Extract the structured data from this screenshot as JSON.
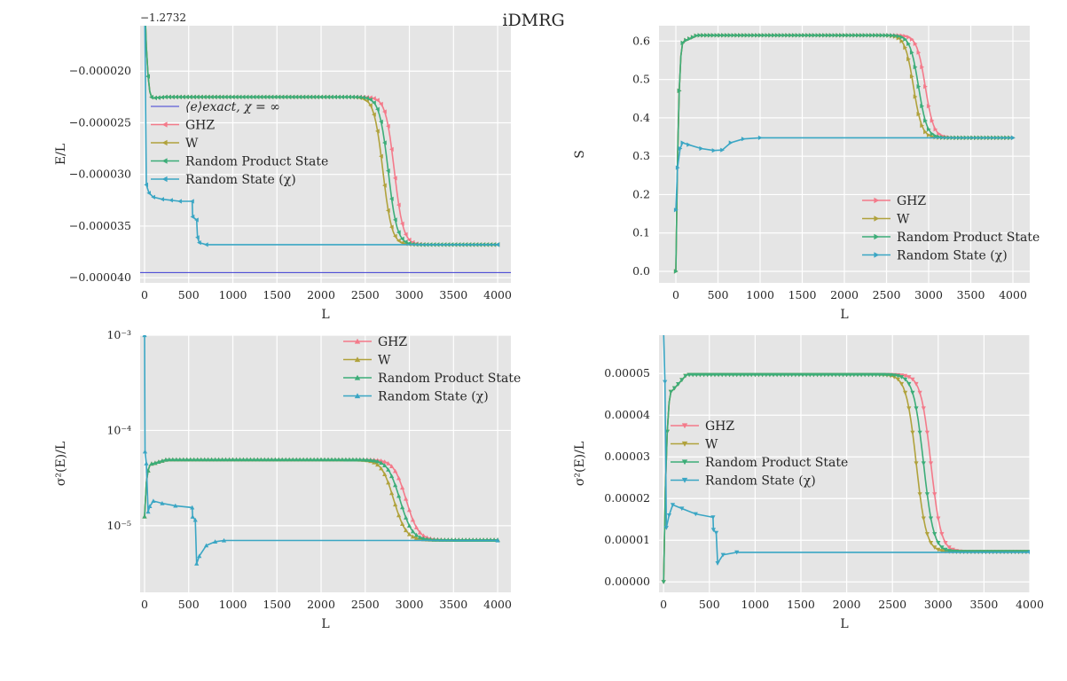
{
  "figure": {
    "suptitle": "iDMRG"
  },
  "chart_data": [
    {
      "id": "energy",
      "type": "line",
      "xlabel": "L",
      "ylabel": "E/L",
      "y_offset_label": "−1.2732",
      "xlim": [
        -50,
        4150
      ],
      "ylim": [
        -4.05e-05,
        -1.56e-05
      ],
      "x_ticks": [
        0,
        500,
        1000,
        1500,
        2000,
        2500,
        3000,
        3500,
        4000
      ],
      "y_ticks": [
        -4e-05,
        -3.5e-05,
        -3e-05,
        -2.5e-05,
        -2e-05
      ],
      "y_tick_labels": [
        "−0.000040",
        "−0.000035",
        "−0.000030",
        "−0.000025",
        "−0.000020"
      ],
      "grid": true,
      "marker": "tri-left",
      "legend_position": "center-left",
      "reference_line": {
        "label": "⟨e⟩exact, χ = ∞",
        "y": -3.95e-05,
        "color": "#3b3bd4"
      },
      "series": [
        {
          "name": "GHZ",
          "color": "#f47a8a",
          "shape": "logistic",
          "transition_x": 2830,
          "width": 50,
          "start": -1.29e-05,
          "early": -2.26e-05,
          "plateau": -2.25e-05,
          "final": -3.68e-05
        },
        {
          "name": "W",
          "color": "#b0a23c",
          "shape": "logistic",
          "transition_x": 2700,
          "width": 50,
          "start": -1.29e-05,
          "early": -2.26e-05,
          "plateau": -2.25e-05,
          "final": -3.68e-05
        },
        {
          "name": "Random Product State",
          "color": "#3cad78",
          "shape": "logistic",
          "transition_x": 2760,
          "width": 50,
          "start": -1.29e-05,
          "early": -2.26e-05,
          "plateau": -2.25e-05,
          "final": -3.68e-05
        },
        {
          "name": "Random State (χ)",
          "color": "#3aa6c4",
          "shape": "step",
          "points": [
            [
              0,
              -1.26e-05
            ],
            [
              20,
              -3.1e-05
            ],
            [
              50,
              -3.18e-05
            ],
            [
              100,
              -3.22e-05
            ],
            [
              200,
              -3.24e-05
            ],
            [
              300,
              -3.25e-05
            ],
            [
              400,
              -3.26e-05
            ],
            [
              540,
              -3.26e-05
            ],
            [
              545,
              -3.41e-05
            ],
            [
              590,
              -3.44e-05
            ],
            [
              600,
              -3.61e-05
            ],
            [
              620,
              -3.66e-05
            ],
            [
              700,
              -3.68e-05
            ],
            [
              4000,
              -3.68e-05
            ]
          ]
        }
      ]
    },
    {
      "id": "entropy",
      "type": "line",
      "xlabel": "L",
      "ylabel": "S",
      "xlim": [
        -200,
        4200
      ],
      "ylim": [
        -0.03,
        0.64
      ],
      "x_ticks": [
        0,
        500,
        1000,
        1500,
        2000,
        2500,
        3000,
        3500,
        4000
      ],
      "y_ticks": [
        0.0,
        0.1,
        0.2,
        0.3,
        0.4,
        0.5,
        0.6
      ],
      "y_tick_labels": [
        "0.0",
        "0.1",
        "0.2",
        "0.3",
        "0.4",
        "0.5",
        "0.6"
      ],
      "grid": true,
      "marker": "tri-right",
      "legend_position": "lower-right",
      "series": [
        {
          "name": "GHZ",
          "color": "#f47a8a",
          "shape": "logistic",
          "transition_x": 2960,
          "width": 50,
          "start": 0.0,
          "early": 0.6,
          "plateau": 0.615,
          "final": 0.348
        },
        {
          "name": "W",
          "color": "#b0a23c",
          "shape": "logistic",
          "transition_x": 2820,
          "width": 50,
          "start": 0.0,
          "early": 0.6,
          "plateau": 0.615,
          "final": 0.348
        },
        {
          "name": "Random Product State",
          "color": "#3cad78",
          "shape": "logistic",
          "transition_x": 2880,
          "width": 50,
          "start": 0.0,
          "early": 0.6,
          "plateau": 0.615,
          "final": 0.348
        },
        {
          "name": "Random State (χ)",
          "color": "#3aa6c4",
          "shape": "step",
          "points": [
            [
              0,
              0.16
            ],
            [
              20,
              0.27
            ],
            [
              50,
              0.32
            ],
            [
              80,
              0.335
            ],
            [
              150,
              0.33
            ],
            [
              300,
              0.32
            ],
            [
              450,
              0.315
            ],
            [
              550,
              0.316
            ],
            [
              650,
              0.335
            ],
            [
              800,
              0.345
            ],
            [
              1000,
              0.348
            ],
            [
              4000,
              0.348
            ]
          ]
        }
      ]
    },
    {
      "id": "variance_log",
      "type": "line",
      "xlabel": "L",
      "ylabel": "σ²(E)/L",
      "y_scale": "log",
      "xlim": [
        -50,
        4150
      ],
      "ylim": [
        2e-06,
        0.001
      ],
      "x_ticks": [
        0,
        500,
        1000,
        1500,
        2000,
        2500,
        3000,
        3500,
        4000
      ],
      "y_ticks": [
        1e-05,
        0.0001,
        0.001
      ],
      "y_tick_labels": [
        "10⁻⁵",
        "10⁻⁴",
        "10⁻³"
      ],
      "grid": true,
      "marker": "tri-up",
      "legend_position": "upper-right",
      "series": [
        {
          "name": "GHZ",
          "color": "#f47a8a",
          "shape": "logistic",
          "transition_x": 2900,
          "width": 65,
          "start": 1.25e-05,
          "early": 4.5e-05,
          "plateau": 4.95e-05,
          "final": 7.1e-06
        },
        {
          "name": "W",
          "color": "#b0a23c",
          "shape": "logistic",
          "transition_x": 2760,
          "width": 65,
          "start": 1.25e-05,
          "early": 4.5e-05,
          "plateau": 4.95e-05,
          "final": 7.1e-06
        },
        {
          "name": "Random Product State",
          "color": "#3cad78",
          "shape": "logistic",
          "transition_x": 2830,
          "width": 65,
          "start": 1.25e-05,
          "early": 4.5e-05,
          "plateau": 4.95e-05,
          "final": 7.1e-06
        },
        {
          "name": "Random State (χ)",
          "color": "#3aa6c4",
          "shape": "step",
          "points": [
            [
              0,
              0.001
            ],
            [
              5,
              6e-05
            ],
            [
              20,
              4.5e-05
            ],
            [
              40,
              1.4e-05
            ],
            [
              60,
              1.6e-05
            ],
            [
              100,
              1.82e-05
            ],
            [
              200,
              1.72e-05
            ],
            [
              350,
              1.62e-05
            ],
            [
              540,
              1.55e-05
            ],
            [
              545,
              1.24e-05
            ],
            [
              575,
              1.15e-05
            ],
            [
              590,
              4e-06
            ],
            [
              620,
              4.8e-06
            ],
            [
              700,
              6.2e-06
            ],
            [
              800,
              6.8e-06
            ],
            [
              900,
              7e-06
            ],
            [
              4000,
              7e-06
            ]
          ]
        }
      ]
    },
    {
      "id": "variance_lin",
      "type": "line",
      "xlabel": "L",
      "ylabel": "σ²(E)/L",
      "xlim": [
        -50,
        4000
      ],
      "ylim": [
        -2.5e-06,
        5.92e-05
      ],
      "x_ticks": [
        0,
        500,
        1000,
        1500,
        2000,
        2500,
        3000,
        3500,
        4000
      ],
      "y_ticks": [
        0.0,
        1e-05,
        2e-05,
        3e-05,
        4e-05,
        5e-05
      ],
      "y_tick_labels": [
        "0.00000",
        "0.00001",
        "0.00002",
        "0.00003",
        "0.00004",
        "0.00005"
      ],
      "grid": true,
      "marker": "tri-down",
      "legend_position": "center-left",
      "series": [
        {
          "name": "GHZ",
          "color": "#f47a8a",
          "shape": "logistic",
          "transition_x": 2920,
          "width": 55,
          "start": 0.0,
          "early": 4.6e-05,
          "plateau": 4.97e-05,
          "final": 7.2e-06
        },
        {
          "name": "W",
          "color": "#b0a23c",
          "shape": "logistic",
          "transition_x": 2760,
          "width": 55,
          "start": 0.0,
          "early": 4.6e-05,
          "plateau": 4.97e-05,
          "final": 7.2e-06
        },
        {
          "name": "Random Product State",
          "color": "#3cad78",
          "shape": "logistic",
          "transition_x": 2840,
          "width": 55,
          "start": 0.0,
          "early": 4.6e-05,
          "plateau": 4.97e-05,
          "final": 7.2e-06
        },
        {
          "name": "Random State (χ)",
          "color": "#3aa6c4",
          "shape": "step",
          "points": [
            [
              0,
              6e-05
            ],
            [
              15,
              4.8e-05
            ],
            [
              30,
              1.3e-05
            ],
            [
              60,
              1.6e-05
            ],
            [
              100,
              1.85e-05
            ],
            [
              200,
              1.76e-05
            ],
            [
              350,
              1.63e-05
            ],
            [
              540,
              1.55e-05
            ],
            [
              545,
              1.25e-05
            ],
            [
              575,
              1.18e-05
            ],
            [
              590,
              4.5e-06
            ],
            [
              650,
              6.5e-06
            ],
            [
              800,
              7.1e-06
            ],
            [
              4000,
              7.1e-06
            ]
          ]
        }
      ]
    }
  ]
}
